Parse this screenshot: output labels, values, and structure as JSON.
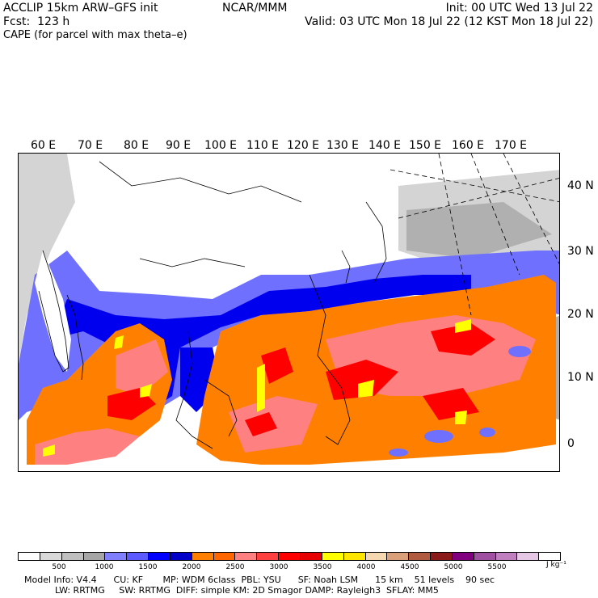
{
  "header": {
    "left_line1": "ACCLIP 15km ARW–GFS init",
    "left_line2": "Fcst:  123 h",
    "left_line3": "CAPE (for parcel with max theta–e)",
    "center": "NCAR/MMM",
    "right_line1": "Init: 00 UTC Wed 13 Jul 22",
    "right_line2": "Valid: 03 UTC Mon 18 Jul 22 (12 KST Mon 18 Jul 22)"
  },
  "map": {
    "lon_labels": [
      "60 E",
      "70 E",
      "80 E",
      "90 E",
      "100 E",
      "110 E",
      "120 E",
      "130 E",
      "140 E",
      "150 E",
      "160 E",
      "170 E"
    ],
    "lat_labels": [
      "40 N",
      "30 N",
      "20 N",
      "10 N",
      "0"
    ],
    "field": "CAPE"
  },
  "colorbar": {
    "colors": [
      "#ffffff",
      "#d9d9d9",
      "#bfbfbf",
      "#a6a6a6",
      "#8080ff",
      "#5a5aff",
      "#0000ff",
      "#0000c8",
      "#ff8000",
      "#ff6600",
      "#ff8080",
      "#ff4040",
      "#ff0000",
      "#e60000",
      "#ffff00",
      "#ffe600",
      "#f5d7b0",
      "#d9a07a",
      "#b05a40",
      "#8b1a1a",
      "#800080",
      "#a050a0",
      "#c080c0",
      "#e6c8e6",
      "#ffffff"
    ],
    "ticks": [
      "500",
      "1000",
      "1500",
      "2000",
      "2500",
      "3000",
      "3500",
      "4000",
      "4500",
      "5000",
      "5500"
    ],
    "unit": "J kg⁻¹"
  },
  "footer": {
    "line1": "Model Info: V4.4      CU: KF       MP: WDM 6class  PBL: YSU      SF: Noah LSM      15 km    51 levels    90 sec",
    "line2": "LW: RRTMG     SW: RRTMG  DIFF: simple KM: 2D Smagor DAMP: Rayleigh3  SFLAY: MM5"
  }
}
